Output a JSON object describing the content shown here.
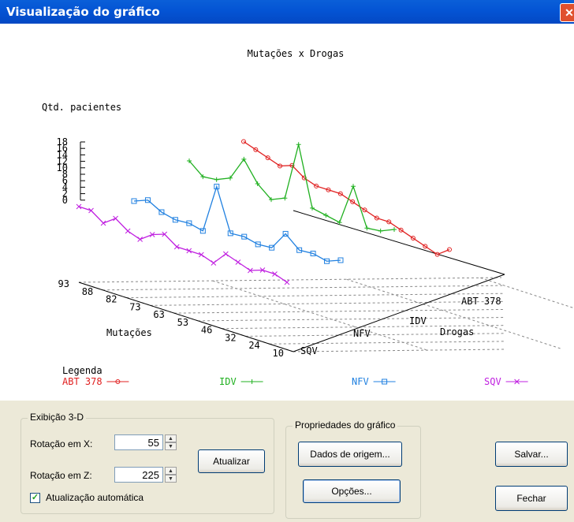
{
  "window": {
    "title": "Visualização do gráfico",
    "close_glyph": "✕"
  },
  "chart_data": {
    "type": "line",
    "title": "Mutações x Drogas",
    "ylabel": "Qtd. pacientes",
    "y_ticks": [
      "18",
      "16",
      "14",
      "12",
      "10",
      "8",
      "6",
      "4",
      "2",
      "0"
    ],
    "x_axis_label": "Mutações",
    "x_ticks": [
      "93",
      "88",
      "82",
      "73",
      "63",
      "53",
      "46",
      "32",
      "24",
      "10"
    ],
    "z_axis_label": "Drogas",
    "z_ticks": [
      "ABT 378",
      "IDV",
      "NFV",
      "SQV"
    ],
    "view": "3d",
    "legend_title": "Legenda",
    "series": [
      {
        "name": "ABT 378",
        "color": "#e02020",
        "values": [
          12,
          11,
          10,
          9,
          10,
          8,
          7,
          7,
          7,
          6,
          5,
          4,
          4,
          3,
          2,
          1,
          0,
          2
        ]
      },
      {
        "name": "IDV",
        "color": "#20b020",
        "values": [
          9,
          6,
          6,
          7,
          12,
          7,
          4,
          5,
          18,
          4,
          3,
          2,
          11,
          2,
          2,
          3
        ]
      },
      {
        "name": "NFV",
        "color": "#2080e0",
        "values": [
          4,
          5,
          3,
          2,
          2,
          1,
          12,
          2,
          2,
          1,
          1,
          5,
          2,
          2,
          1,
          2
        ]
      },
      {
        "name": "SQV",
        "color": "#c020e0",
        "values": [
          3,
          3,
          1,
          3,
          1,
          0,
          2,
          3,
          1,
          1,
          1,
          0,
          3,
          2,
          1,
          2,
          2,
          1
        ]
      }
    ]
  },
  "panel3d": {
    "title": "Exibição 3-D",
    "rotx_label": "Rotação em X:",
    "rotx_value": "55",
    "rotz_label": "Rotação em Z:",
    "rotz_value": "225",
    "update_button": "Atualizar",
    "auto_label": "Atualização automática",
    "auto_checked": true
  },
  "props": {
    "title": "Propriedades do gráfico",
    "source_button": "Dados de origem...",
    "options_button": "Opções..."
  },
  "save_button": "Salvar...",
  "close_button": "Fechar"
}
